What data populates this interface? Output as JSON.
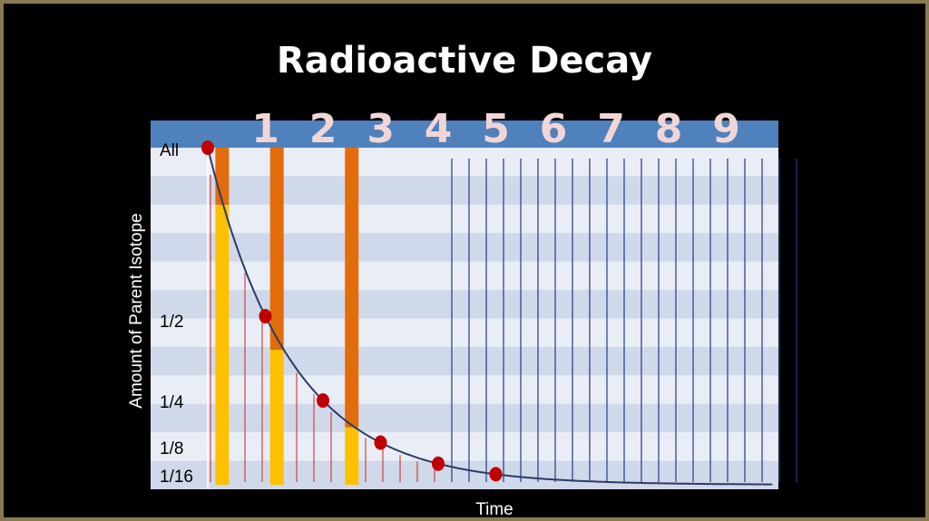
{
  "slide": {
    "title": "Radioactive Decay",
    "colors": {
      "frame": "#8a7a52",
      "background": "#000000",
      "header": "#4f81bd",
      "band_light": "#e9edf5",
      "band_dark": "#d0d9ea",
      "orange": "#e36c0a",
      "yellow": "#ffc000",
      "curve": "#2b3b66",
      "marker": "#c00000",
      "blue_line": "#1f3c88",
      "red_line": "#cc2222"
    }
  },
  "chart_data": {
    "type": "line",
    "title": "Radioactive Decay",
    "xlabel": "Time",
    "ylabel": "Amount of Parent Isotope",
    "half_life_labels": [
      "1",
      "2",
      "3",
      "4",
      "5",
      "6",
      "7",
      "8",
      "9"
    ],
    "y_tick_labels": [
      "All",
      "1/2",
      "1/4",
      "1/8",
      "1/16"
    ],
    "y_ticks": [
      1,
      0.5,
      0.25,
      0.125,
      0.0625
    ],
    "x_range": [
      0,
      10
    ],
    "y_range": [
      0,
      1
    ],
    "grid": true,
    "series": [
      {
        "x": [
          0,
          1,
          2,
          3,
          4,
          5,
          6,
          7,
          8,
          9,
          10
        ],
        "y": [
          1,
          0.5,
          0.25,
          0.125,
          0.0625,
          0.03125,
          0.015625,
          0.0078,
          0.0039,
          0.002,
          0.001
        ]
      }
    ],
    "markers": [
      {
        "x": 0,
        "y": 1
      },
      {
        "x": 1,
        "y": 0.5
      },
      {
        "x": 2,
        "y": 0.25
      },
      {
        "x": 3,
        "y": 0.125
      },
      {
        "x": 4,
        "y": 0.0625
      },
      {
        "x": 5,
        "y": 0.03125
      }
    ],
    "stacked_bars": [
      {
        "x": 0.25,
        "parent": 0.83,
        "daughter": 0.17
      },
      {
        "x": 1.2,
        "parent": 0.4,
        "daughter": 0.6
      },
      {
        "x": 2.5,
        "parent": 0.17,
        "daughter": 0.83
      }
    ]
  }
}
